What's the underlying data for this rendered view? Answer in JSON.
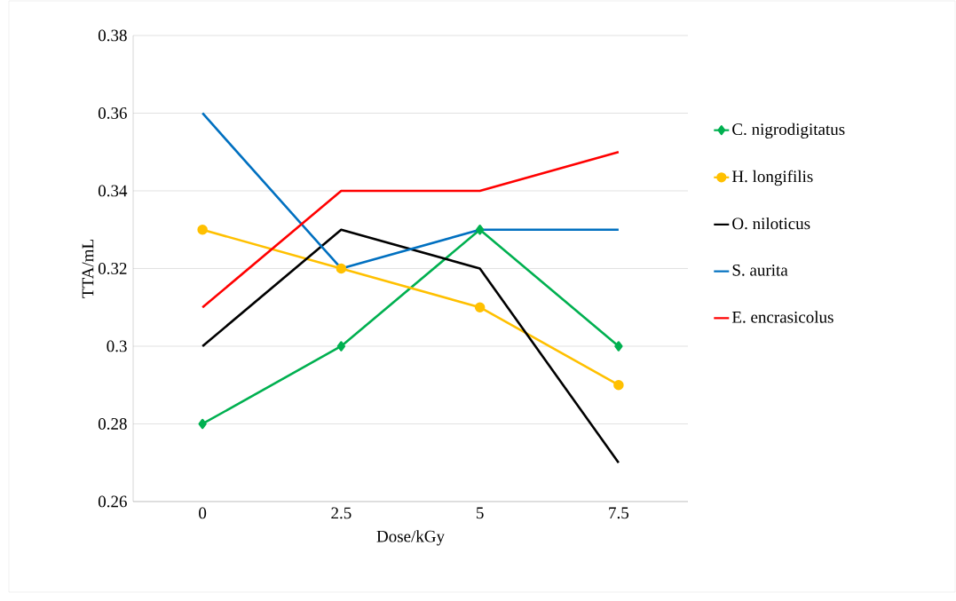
{
  "chart_data": {
    "type": "line",
    "xlabel": "Dose/kGy",
    "ylabel": "TTA/mL",
    "categories": [
      "0",
      "2.5",
      "5",
      "7.5"
    ],
    "ylim": [
      0.26,
      0.38
    ],
    "yticks": [
      0.26,
      0.28,
      0.3,
      0.32,
      0.34,
      0.36,
      0.38
    ],
    "grid": "y",
    "legend": "right",
    "series": [
      {
        "name": "C. nigrodigitatus",
        "color": "#00b050",
        "marker": "diamond",
        "values": [
          0.28,
          0.3,
          0.33,
          0.3
        ]
      },
      {
        "name": "H. longifilis",
        "color": "#ffc000",
        "marker": "circle",
        "values": [
          0.33,
          0.32,
          0.31,
          0.29
        ]
      },
      {
        "name": "O. niloticus",
        "color": "#000000",
        "values": [
          0.3,
          0.33,
          0.32,
          0.27
        ]
      },
      {
        "name": "S. aurita",
        "color": "#0070c0",
        "values": [
          0.36,
          0.32,
          0.33,
          0.33
        ]
      },
      {
        "name": "E. encrasicolus",
        "color": "#ff0000",
        "values": [
          0.31,
          0.34,
          0.34,
          0.35
        ]
      }
    ]
  }
}
